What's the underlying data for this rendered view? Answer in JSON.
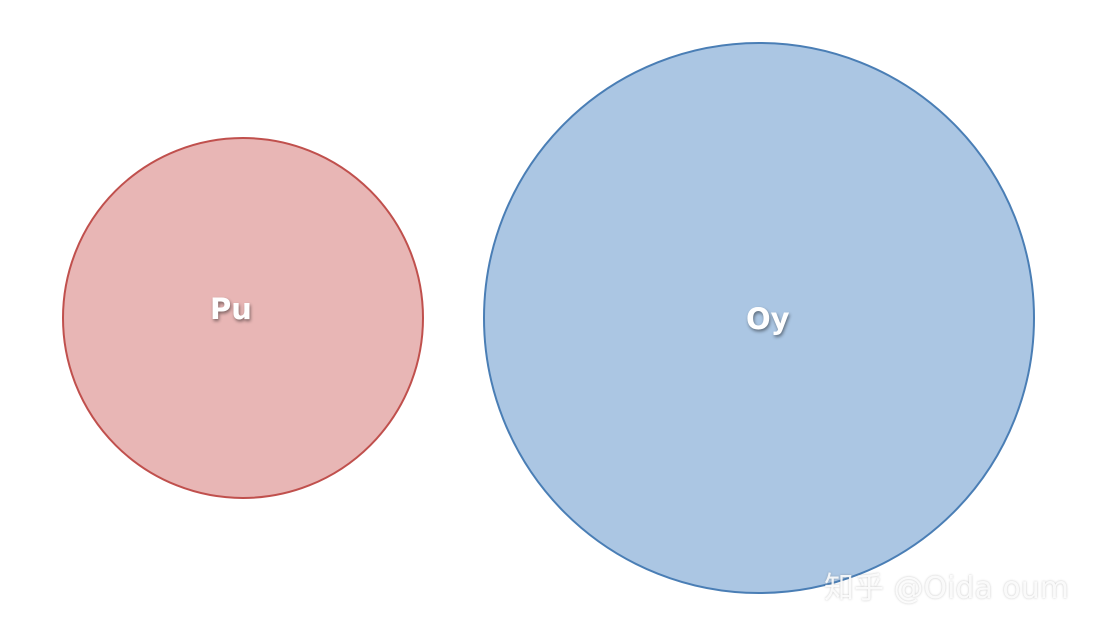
{
  "diagram": {
    "circles": [
      {
        "label": "Pu",
        "fill_color": "#e8b6b5",
        "stroke_color": "#c0504d"
      },
      {
        "label": "Oy",
        "fill_color": "#abc6e3",
        "stroke_color": "#4a7eb5"
      }
    ]
  },
  "watermark": {
    "text": "知乎 @Oida oum"
  }
}
